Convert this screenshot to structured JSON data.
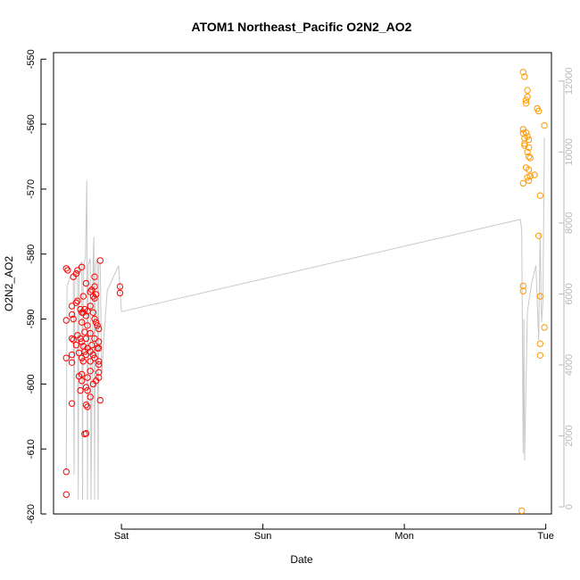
{
  "chart_data": {
    "type": "scatter",
    "title": "ATOM1 Northeast_Pacific O2N2_AO2",
    "xlabel": "Date",
    "ylabel": "O2N2_AO2",
    "x_ticks": [
      "Sat",
      "Sun",
      "Mon",
      "Tue"
    ],
    "ylim": [
      -620,
      -549
    ],
    "y_ticks": [
      -550,
      -560,
      -570,
      -580,
      -590,
      -600,
      -610,
      -620
    ],
    "y2lim": [
      -200,
      12800
    ],
    "y2_ticks": [
      0,
      2000,
      4000,
      6000,
      8000,
      10000,
      12000
    ],
    "grid": false,
    "colors": {
      "series1": "#ff0000",
      "series2": "#ff9900",
      "line": "#c8c8c8",
      "axis": "#000000",
      "axis_right": "#b8b8b8"
    },
    "series": [
      {
        "color": "#ff0000",
        "points": [
          [
            -0.39,
            -582.2
          ],
          [
            -0.38,
            -582.5
          ],
          [
            -0.39,
            -590.2
          ],
          [
            -0.39,
            -596.0
          ],
          [
            -0.39,
            -613.5
          ],
          [
            -0.39,
            -617.0
          ],
          [
            -0.35,
            -588.0
          ],
          [
            -0.35,
            -589.3
          ],
          [
            -0.35,
            -593.0
          ],
          [
            -0.35,
            -595.5
          ],
          [
            -0.35,
            -596.7
          ],
          [
            -0.35,
            -603.0
          ],
          [
            -0.34,
            -583.5
          ],
          [
            -0.34,
            -590.0
          ],
          [
            -0.34,
            -593.2
          ],
          [
            -0.32,
            -583.0
          ],
          [
            -0.32,
            -587.5
          ],
          [
            -0.32,
            -594.0
          ],
          [
            -0.31,
            -582.5
          ],
          [
            -0.31,
            -587.2
          ],
          [
            -0.31,
            -592.5
          ],
          [
            -0.3,
            -595.2
          ],
          [
            -0.3,
            -598.8
          ],
          [
            -0.29,
            -588.5
          ],
          [
            -0.29,
            -593.0
          ],
          [
            -0.29,
            -601.0
          ],
          [
            -0.28,
            -582.0
          ],
          [
            -0.28,
            -589.0
          ],
          [
            -0.28,
            -590.5
          ],
          [
            -0.28,
            -593.5
          ],
          [
            -0.28,
            -596.0
          ],
          [
            -0.28,
            -598.5
          ],
          [
            -0.28,
            -599.5
          ],
          [
            -0.27,
            -586.5
          ],
          [
            -0.27,
            -589.0
          ],
          [
            -0.27,
            -594.2
          ],
          [
            -0.27,
            -596.5
          ],
          [
            -0.26,
            -588.5
          ],
          [
            -0.26,
            -592.0
          ],
          [
            -0.26,
            -595.0
          ],
          [
            -0.26,
            -607.7
          ],
          [
            -0.25,
            -584.5
          ],
          [
            -0.25,
            -589.5
          ],
          [
            -0.25,
            -593.0
          ],
          [
            -0.25,
            -595.5
          ],
          [
            -0.25,
            -600.5
          ],
          [
            -0.25,
            -603.2
          ],
          [
            -0.25,
            -607.6
          ],
          [
            -0.24,
            -588.8
          ],
          [
            -0.24,
            -591.0
          ],
          [
            -0.24,
            -594.5
          ],
          [
            -0.24,
            -599.0
          ],
          [
            -0.24,
            -601.0
          ],
          [
            -0.24,
            -603.5
          ],
          [
            -0.22,
            -585.8
          ],
          [
            -0.22,
            -588.0
          ],
          [
            -0.22,
            -592.2
          ],
          [
            -0.22,
            -595.0
          ],
          [
            -0.22,
            -596.5
          ],
          [
            -0.22,
            -598.0
          ],
          [
            -0.22,
            -602.0
          ],
          [
            -0.21,
            -585.5
          ],
          [
            -0.21,
            -594.0
          ],
          [
            -0.2,
            -586.5
          ],
          [
            -0.2,
            -589.0
          ],
          [
            -0.2,
            -595.5
          ],
          [
            -0.2,
            -600.0
          ],
          [
            -0.19,
            -583.5
          ],
          [
            -0.19,
            -585.0
          ],
          [
            -0.19,
            -586.8
          ],
          [
            -0.19,
            -590.0
          ],
          [
            -0.19,
            -593.0
          ],
          [
            -0.19,
            -596.0
          ],
          [
            -0.18,
            -586.2
          ],
          [
            -0.18,
            -590.5
          ],
          [
            -0.18,
            -599.5
          ],
          [
            -0.17,
            -591.0
          ],
          [
            -0.17,
            -594.5
          ],
          [
            -0.16,
            -591.5
          ],
          [
            -0.16,
            -594.5
          ],
          [
            -0.16,
            -593.5
          ],
          [
            -0.16,
            -596.5
          ],
          [
            -0.16,
            -597.0
          ],
          [
            -0.16,
            -598.2
          ],
          [
            -0.16,
            -599.0
          ],
          [
            -0.15,
            -581.0
          ],
          [
            -0.15,
            -602.5
          ],
          [
            -0.01,
            -585.0
          ],
          [
            -0.01,
            -586.0
          ]
        ]
      },
      {
        "color": "#ff9900",
        "points": [
          [
            2.84,
            -552.0
          ],
          [
            2.85,
            -552.7
          ],
          [
            2.86,
            -556.3
          ],
          [
            2.86,
            -556.8
          ],
          [
            2.87,
            -554.8
          ],
          [
            2.87,
            -555.8
          ],
          [
            2.84,
            -560.8
          ],
          [
            2.84,
            -561.4
          ],
          [
            2.85,
            -562.2
          ],
          [
            2.85,
            -563.0
          ],
          [
            2.85,
            -563.3
          ],
          [
            2.86,
            -561.3
          ],
          [
            2.87,
            -561.9
          ],
          [
            2.88,
            -563.6
          ],
          [
            2.87,
            -564.3
          ],
          [
            2.88,
            -562.4
          ],
          [
            2.88,
            -565.0
          ],
          [
            2.89,
            -565.2
          ],
          [
            2.88,
            -567.0
          ],
          [
            2.87,
            -568.2
          ],
          [
            2.86,
            -566.7
          ],
          [
            2.88,
            -568.7
          ],
          [
            2.89,
            -568.0
          ],
          [
            2.84,
            -569.1
          ],
          [
            2.92,
            -567.8
          ],
          [
            2.95,
            -558.0
          ],
          [
            2.94,
            -557.6
          ],
          [
            2.99,
            -560.2
          ],
          [
            2.95,
            -577.2
          ],
          [
            2.96,
            -571.0
          ],
          [
            2.96,
            -586.5
          ],
          [
            2.96,
            -593.8
          ],
          [
            2.96,
            -595.6
          ],
          [
            2.99,
            -591.3
          ],
          [
            2.84,
            -584.9
          ],
          [
            2.84,
            -585.7
          ],
          [
            2.83,
            -619.5
          ]
        ]
      }
    ],
    "line_secondary": {
      "color": "#c8c8c8",
      "points": [
        [
          -0.39,
          1000
        ],
        [
          -0.385,
          6200
        ],
        [
          -0.36,
          6500
        ],
        [
          -0.34,
          6600
        ],
        [
          -0.335,
          900
        ],
        [
          -0.33,
          6400
        ],
        [
          -0.31,
          6700
        ],
        [
          -0.305,
          200
        ],
        [
          -0.3,
          6800
        ],
        [
          -0.28,
          6900
        ],
        [
          -0.275,
          200
        ],
        [
          -0.27,
          6800
        ],
        [
          -0.255,
          7000
        ],
        [
          -0.245,
          9200
        ],
        [
          -0.24,
          200
        ],
        [
          -0.235,
          6800
        ],
        [
          -0.22,
          7000
        ],
        [
          -0.215,
          200
        ],
        [
          -0.2,
          7000
        ],
        [
          -0.195,
          7600
        ],
        [
          -0.19,
          200
        ],
        [
          -0.185,
          6800
        ],
        [
          -0.17,
          7000
        ],
        [
          -0.165,
          200
        ],
        [
          -0.16,
          6800
        ],
        [
          -0.15,
          6900
        ],
        [
          -0.14,
          3700
        ],
        [
          -0.12,
          5000
        ],
        [
          -0.1,
          6100
        ],
        [
          -0.02,
          6800
        ],
        [
          0.0,
          5500
        ],
        [
          2.82,
          8100
        ],
        [
          2.83,
          7800
        ],
        [
          2.84,
          1500
        ],
        [
          2.845,
          5300
        ],
        [
          2.85,
          1300
        ],
        [
          2.87,
          5500
        ],
        [
          2.9,
          6300
        ],
        [
          2.93,
          6800
        ],
        [
          2.95,
          4700
        ],
        [
          2.96,
          7700
        ],
        [
          2.97,
          5200
        ],
        [
          2.98,
          5800
        ],
        [
          2.99,
          10400
        ]
      ]
    }
  }
}
